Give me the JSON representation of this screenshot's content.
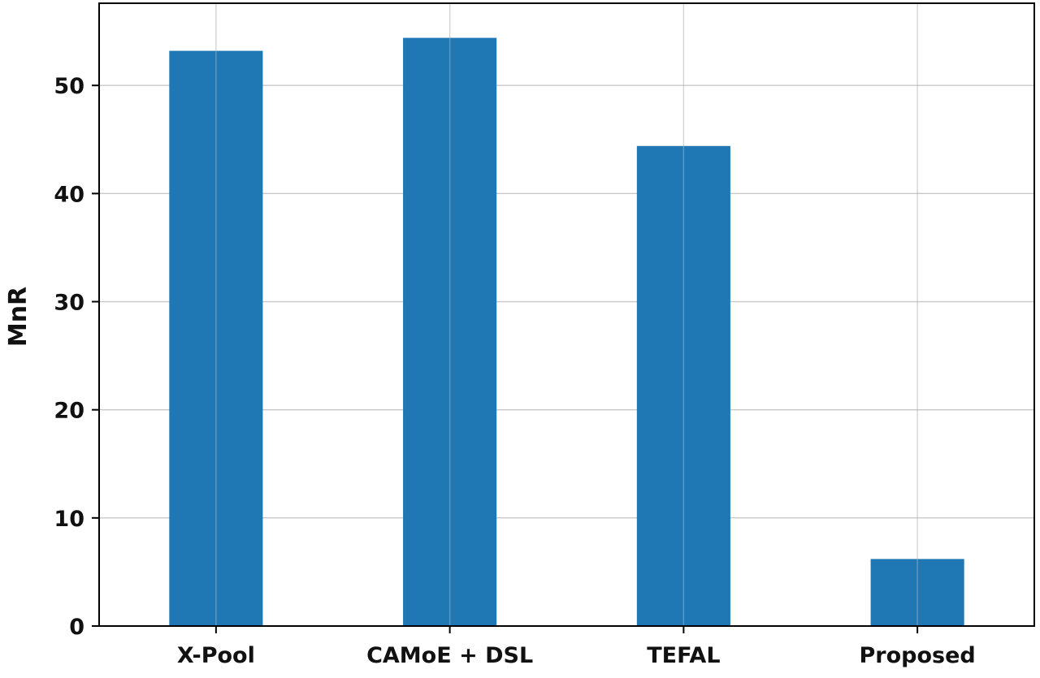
{
  "chart_data": {
    "type": "bar",
    "title": "",
    "xlabel": "",
    "ylabel": "MnR",
    "categories": [
      "X-Pool",
      "CAMoE + DSL",
      "TEFAL",
      "Proposed"
    ],
    "values": [
      53.2,
      54.4,
      44.4,
      6.2
    ],
    "ylim": [
      0,
      57.6
    ],
    "yticks": [
      0,
      10,
      20,
      30,
      40,
      50
    ],
    "grid": true,
    "bar_color": "#1f77b4",
    "grid_color": "#b0b0b0",
    "axis_color": "#000000"
  }
}
